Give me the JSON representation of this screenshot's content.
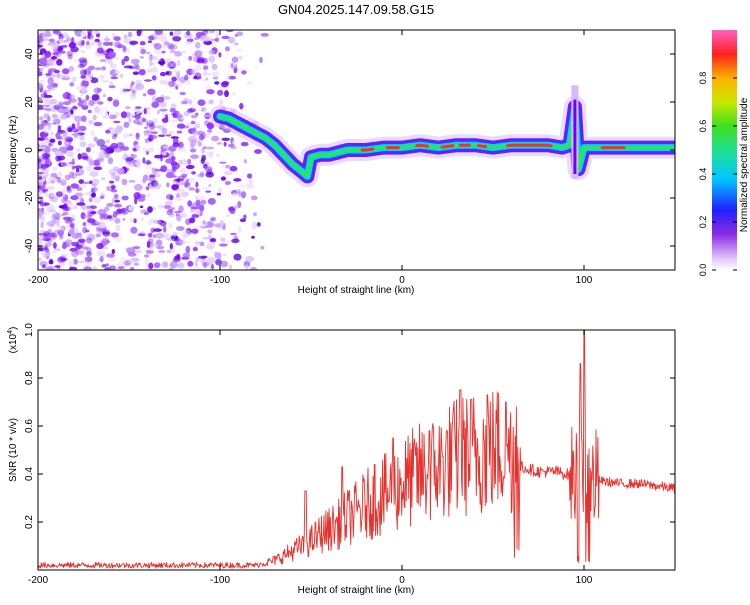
{
  "title": "GN04.2025.147.09.58.G15",
  "chart_data": [
    {
      "type": "heatmap",
      "xlabel": "Height of straight line (km)",
      "ylabel": "Frequency (Hz)",
      "xlim": [
        -200,
        150
      ],
      "ylim": [
        -50,
        50
      ],
      "xticks": [
        "-200",
        "-100",
        "0",
        "100"
      ],
      "yticks": [
        "40",
        "20",
        "0",
        "-20",
        "-40"
      ],
      "ridge": {
        "x": [
          -100,
          -95,
          -90,
          -85,
          -80,
          -75,
          -70,
          -65,
          -60,
          -55,
          -52,
          -50,
          -45,
          -40,
          -35,
          -30,
          -20,
          -10,
          0,
          10,
          20,
          30,
          40,
          50,
          60,
          70,
          80,
          88,
          92,
          95,
          97,
          100,
          110,
          120,
          130,
          140,
          150
        ],
        "y": [
          14,
          13,
          11,
          9,
          7,
          5,
          2,
          -2,
          -6,
          -9,
          -11,
          -3,
          -2,
          -2,
          -1,
          0,
          0,
          1,
          1,
          2,
          1,
          2,
          2,
          1,
          2,
          2,
          2,
          1,
          2,
          18,
          -8,
          1,
          1,
          1,
          1,
          1,
          1
        ],
        "spike": {
          "x": 95,
          "ymax": 27,
          "ymin": -12
        }
      },
      "colorbar": {
        "label": "Normalized spectral amplitude",
        "ticks": [
          "0.0",
          "0.2",
          "0.4",
          "0.6",
          "0.8"
        ],
        "range": [
          0,
          1
        ]
      }
    },
    {
      "type": "line",
      "xlabel": "Height of straight line (km)",
      "ylabel": "SNR (10 * v/v)",
      "y_scale_label": "(x10",
      "y_scale_exp": "4",
      "y_scale_close": ")",
      "xlim": [
        -200,
        150
      ],
      "ylim": [
        0,
        1.0
      ],
      "xticks": [
        "-200",
        "-100",
        "0",
        "100"
      ],
      "yticks": [
        "1.0",
        "0.8",
        "0.6",
        "0.4",
        "0.2"
      ],
      "color": "#e8302c",
      "series": [
        {
          "x": [
            -200,
            -150,
            -100,
            -90,
            -80,
            -75,
            -70,
            -65,
            -60,
            -55,
            -50,
            -45,
            -40,
            -35,
            -30,
            -25,
            -20,
            -15,
            -10,
            -5,
            0,
            5,
            10,
            15,
            20,
            25,
            30,
            35,
            40,
            45,
            50,
            55,
            60,
            63,
            65,
            70,
            75,
            80,
            85,
            90,
            95,
            98,
            100,
            102,
            105,
            110,
            120,
            130,
            140,
            150
          ],
          "y": [
            0.02,
            0.02,
            0.02,
            0.02,
            0.02,
            0.03,
            0.04,
            0.06,
            0.08,
            0.1,
            0.12,
            0.15,
            0.17,
            0.19,
            0.22,
            0.24,
            0.27,
            0.29,
            0.31,
            0.33,
            0.36,
            0.38,
            0.4,
            0.41,
            0.43,
            0.45,
            0.47,
            0.48,
            0.49,
            0.5,
            0.5,
            0.51,
            0.5,
            0.49,
            0.43,
            0.42,
            0.41,
            0.41,
            0.41,
            0.4,
            0.39,
            0.4,
            0.42,
            0.4,
            0.38,
            0.37,
            0.36,
            0.36,
            0.35,
            0.34
          ]
        }
      ],
      "peaks": [
        {
          "x": -53,
          "y": 0.33
        },
        {
          "x": -33,
          "y": 0.43
        },
        {
          "x": -15,
          "y": 0.44
        },
        {
          "x": -5,
          "y": 0.55
        },
        {
          "x": 15,
          "y": 0.58
        },
        {
          "x": 32,
          "y": 0.75
        },
        {
          "x": 38,
          "y": 0.71
        },
        {
          "x": 47,
          "y": 0.73
        },
        {
          "x": 57,
          "y": 0.7
        },
        {
          "x": 63,
          "y": 0.68
        },
        {
          "x": 98,
          "y": 0.86
        },
        {
          "x": 100,
          "y": 1.0
        }
      ]
    }
  ]
}
